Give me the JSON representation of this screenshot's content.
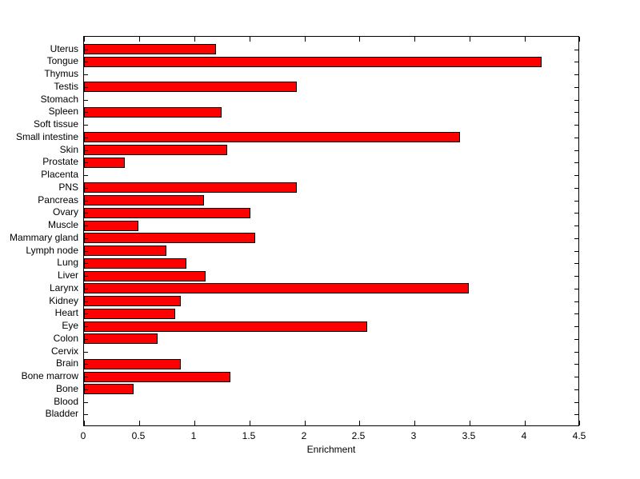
{
  "figure": {
    "background": "#ffffff",
    "axis_color": "#000000",
    "text_color": "#000000"
  },
  "chart_data": {
    "type": "bar",
    "orientation": "horizontal",
    "title": "",
    "xlabel": "Enrichment",
    "ylabel": "",
    "xlim": [
      0,
      4.5
    ],
    "xticks": [
      0,
      0.5,
      1,
      1.5,
      2,
      2.5,
      3,
      3.5,
      4,
      4.5
    ],
    "xtick_labels": [
      "0",
      "0.5",
      "1",
      "1.5",
      "2",
      "2.5",
      "3",
      "3.5",
      "4",
      "4.5"
    ],
    "grid": false,
    "legend": null,
    "bar_color": "#ff0000",
    "bar_edge_color": "#000000",
    "categories": [
      "Uterus",
      "Tongue",
      "Thymus",
      "Testis",
      "Stomach",
      "Spleen",
      "Soft tissue",
      "Small intestine",
      "Skin",
      "Prostate",
      "Placenta",
      "PNS",
      "Pancreas",
      "Ovary",
      "Muscle",
      "Mammary gland",
      "Lymph node",
      "Lung",
      "Liver",
      "Larynx",
      "Kidney",
      "Heart",
      "Eye",
      "Colon",
      "Cervix",
      "Brain",
      "Bone marrow",
      "Bone",
      "Blood",
      "Bladder"
    ],
    "values": [
      1.2,
      4.15,
      0,
      1.93,
      0,
      1.25,
      0,
      3.41,
      1.3,
      0.37,
      0,
      1.93,
      1.09,
      1.51,
      0.49,
      1.55,
      0.75,
      0.93,
      1.1,
      3.49,
      0.88,
      0.83,
      2.57,
      0.67,
      0,
      0.88,
      1.33,
      0.45,
      0,
      0
    ]
  }
}
